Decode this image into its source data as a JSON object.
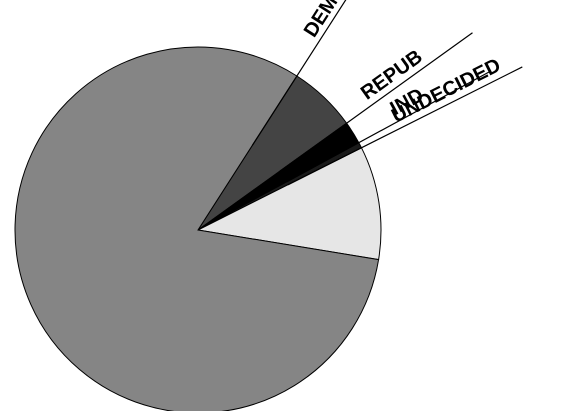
{
  "chart_data": {
    "type": "pie",
    "title": "",
    "legend": "none",
    "slices": [
      {
        "label": "DEM",
        "value": 6,
        "color": "#444444",
        "show_label": true
      },
      {
        "label": "REPUB",
        "value": 2,
        "color": "#000000",
        "show_label": true
      },
      {
        "label": "IND",
        "value": 0.5,
        "color": "#1a1a1a",
        "show_label": true
      },
      {
        "label": "UNDECIDED",
        "value": 10,
        "color": "#e6e6e6",
        "show_label": true
      },
      {
        "label": "",
        "value": 81.5,
        "color": "#858585",
        "show_label": false
      }
    ]
  }
}
